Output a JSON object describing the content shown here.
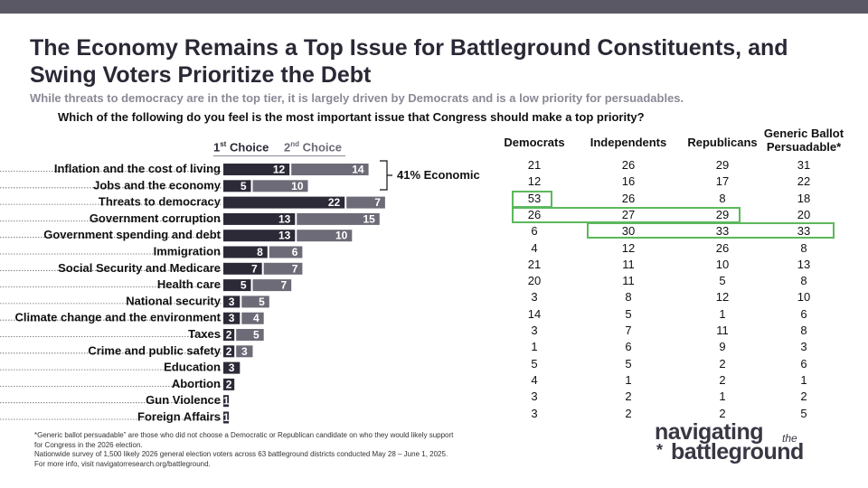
{
  "header": {
    "title": "The Economy Remains a Top Issue for Battleground Constituents, and Swing Voters Prioritize the Debt",
    "subtitle": "While threats to democracy are in the top tier, it is largely driven by Democrats and is a low priority for persuadables.",
    "question": "Which of the following do you feel is the most important issue that Congress should make a top priority?"
  },
  "colors": {
    "first_choice": "#2d2a38",
    "second_choice": "#6e6b78",
    "highlight": "#5cb85c",
    "topbar": "#5b5866"
  },
  "chart_data": {
    "type": "bar",
    "orientation": "horizontal",
    "stacked": true,
    "title": "Which of the following do you feel is the most important issue that Congress should make a top priority?",
    "categories": [
      "Inflation and the cost of living",
      "Jobs and the economy",
      "Threats to democracy",
      "Government corruption",
      "Government spending and debt",
      "Immigration",
      "Social Security and Medicare",
      "Health care",
      "National security",
      "Climate change and the environment",
      "Taxes",
      "Crime and public safety",
      "Education",
      "Abortion",
      "Gun Violence",
      "Foreign Affairs"
    ],
    "series": [
      {
        "name": "1st Choice",
        "values": [
          12,
          5,
          22,
          13,
          13,
          8,
          7,
          5,
          3,
          3,
          2,
          2,
          3,
          2,
          1,
          1
        ]
      },
      {
        "name": "2nd Choice",
        "values": [
          14,
          10,
          7,
          15,
          10,
          6,
          7,
          7,
          5,
          4,
          5,
          3,
          null,
          null,
          null,
          null
        ]
      }
    ],
    "legend_first": "1",
    "legend_first_sup": "st",
    "legend_first_word": "Choice",
    "legend_second": "2",
    "legend_second_sup": "nd",
    "legend_second_word": "Choice",
    "annotation": "41% Economic"
  },
  "table": {
    "columns": [
      "Democrats",
      "Independents",
      "Republicans",
      "Generic Ballot Persuadable*"
    ],
    "column_lines": [
      [
        "Democrats"
      ],
      [
        "Independents"
      ],
      [
        "Republicans"
      ],
      [
        "Generic Ballot",
        "Persuadable*"
      ]
    ],
    "rows": [
      [
        21,
        26,
        29,
        31
      ],
      [
        12,
        16,
        17,
        22
      ],
      [
        53,
        26,
        8,
        18
      ],
      [
        26,
        27,
        29,
        20
      ],
      [
        6,
        30,
        33,
        33
      ],
      [
        4,
        12,
        26,
        8
      ],
      [
        21,
        11,
        10,
        13
      ],
      [
        20,
        11,
        5,
        8
      ],
      [
        3,
        8,
        12,
        10
      ],
      [
        14,
        5,
        1,
        6
      ],
      [
        3,
        7,
        11,
        8
      ],
      [
        1,
        6,
        9,
        3
      ],
      [
        5,
        5,
        2,
        6
      ],
      [
        4,
        1,
        2,
        1
      ],
      [
        3,
        2,
        1,
        2
      ],
      [
        3,
        2,
        2,
        5
      ]
    ]
  },
  "footnotes": [
    "*Generic ballot persuadable” are those who did not choose a Democratic or Republican candidate on who they would likely support",
    "for Congress in the 2026 election.",
    "Nationwide survey of 1,500 likely 2026 general election voters across 63 battleground districts conducted May 28 – June 1, 2025.",
    "For more info, visit navigatorresearch.org/battleground."
  ],
  "brand": {
    "line1": "navigating",
    "small": "the",
    "line2": "battleground",
    "star": "*"
  }
}
